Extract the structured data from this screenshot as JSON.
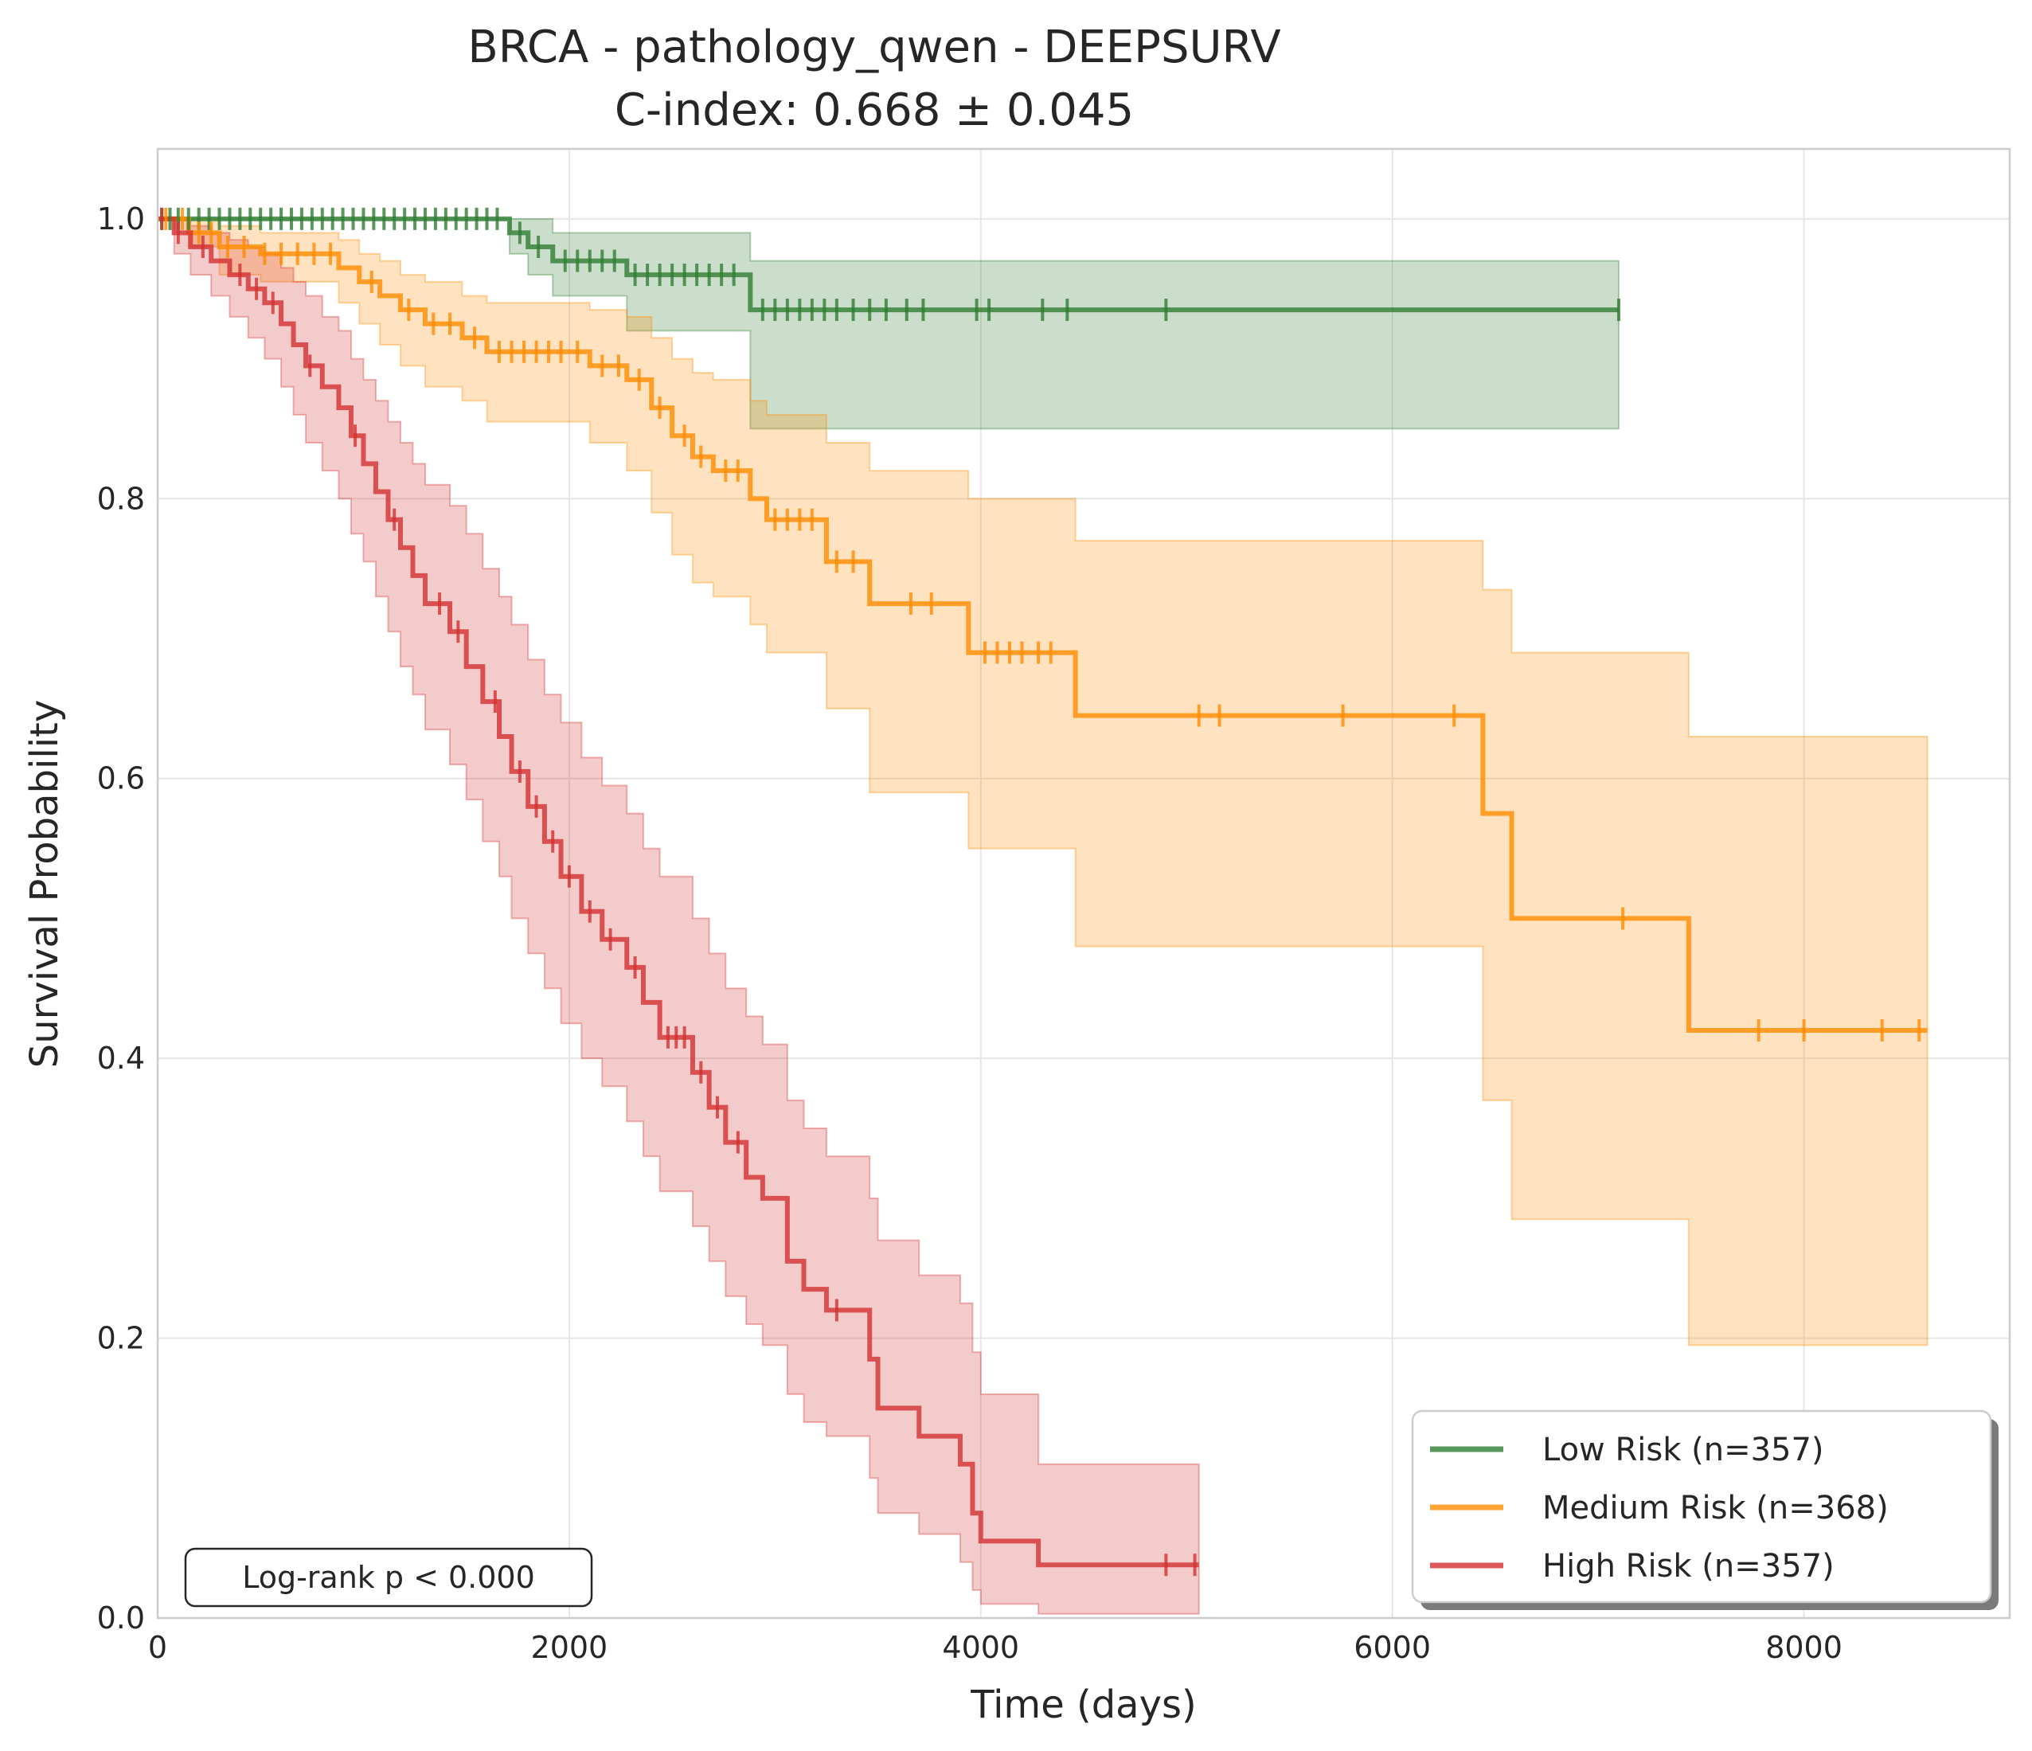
{
  "chart_data": {
    "type": "line",
    "title": "BRCA - pathology_qwen - DEEPSURV",
    "subtitle": "C-index: 0.668 ± 0.045",
    "xlabel": "Time (days)",
    "ylabel": "Survival Probability",
    "xlim": [
      0,
      9000
    ],
    "ylim": [
      0,
      1.05
    ],
    "xticks": [
      0,
      2000,
      4000,
      6000,
      8000
    ],
    "xtick_labels": [
      "0",
      "2000",
      "4000",
      "6000",
      "8000"
    ],
    "yticks": [
      0,
      0.2,
      0.4,
      0.6,
      0.8,
      1.0
    ],
    "ytick_labels": [
      "0.0",
      "0.2",
      "0.4",
      "0.6",
      "0.8",
      "1.0"
    ],
    "grid": true,
    "legend_position": "bottom-right",
    "annotation": "Log-rank p < 0.000",
    "series": [
      {
        "name": "Low Risk (n=357)",
        "color": "#2e7d32",
        "steps": [
          [
            0,
            1.0
          ],
          [
            1710,
            0.99
          ],
          [
            1800,
            0.98
          ],
          [
            1920,
            0.97
          ],
          [
            2280,
            0.96
          ],
          [
            2880,
            0.935
          ],
          [
            7100,
            0.935
          ]
        ],
        "ci": [
          [
            0,
            1.0,
            1.0
          ],
          [
            1710,
            0.975,
            1.0
          ],
          [
            1800,
            0.96,
            1.0
          ],
          [
            1920,
            0.945,
            0.99
          ],
          [
            2280,
            0.92,
            0.99
          ],
          [
            2880,
            0.85,
            0.97
          ],
          [
            7100,
            0.85,
            0.97
          ]
        ],
        "censors": [
          20,
          60,
          100,
          150,
          200,
          250,
          300,
          350,
          400,
          450,
          500,
          550,
          600,
          650,
          700,
          750,
          800,
          850,
          900,
          950,
          1000,
          1050,
          1100,
          1150,
          1200,
          1250,
          1300,
          1350,
          1400,
          1450,
          1500,
          1550,
          1600,
          1650,
          1760,
          1850,
          1980,
          2040,
          2100,
          2160,
          2220,
          2320,
          2380,
          2440,
          2500,
          2560,
          2620,
          2680,
          2740,
          2800,
          2940,
          3000,
          3060,
          3120,
          3180,
          3240,
          3300,
          3380,
          3460,
          3540,
          3640,
          3720,
          3980,
          4040,
          4300,
          4420,
          4900,
          7100
        ]
      },
      {
        "name": "Medium Risk (n=368)",
        "color": "#ff8c00",
        "steps": [
          [
            0,
            1.0
          ],
          [
            150,
            0.99
          ],
          [
            300,
            0.98
          ],
          [
            500,
            0.975
          ],
          [
            880,
            0.965
          ],
          [
            980,
            0.955
          ],
          [
            1080,
            0.945
          ],
          [
            1180,
            0.935
          ],
          [
            1300,
            0.925
          ],
          [
            1480,
            0.915
          ],
          [
            1600,
            0.905
          ],
          [
            2100,
            0.895
          ],
          [
            2280,
            0.885
          ],
          [
            2400,
            0.865
          ],
          [
            2500,
            0.845
          ],
          [
            2600,
            0.83
          ],
          [
            2700,
            0.82
          ],
          [
            2880,
            0.8
          ],
          [
            2960,
            0.785
          ],
          [
            3250,
            0.755
          ],
          [
            3460,
            0.725
          ],
          [
            3940,
            0.69
          ],
          [
            4460,
            0.645
          ],
          [
            6440,
            0.575
          ],
          [
            6580,
            0.5
          ],
          [
            7440,
            0.42
          ],
          [
            8600,
            0.42
          ]
        ],
        "ci": [
          [
            0,
            1.0,
            1.0
          ],
          [
            150,
            0.98,
            1.0
          ],
          [
            300,
            0.96,
            0.995
          ],
          [
            500,
            0.955,
            0.99
          ],
          [
            880,
            0.94,
            0.985
          ],
          [
            980,
            0.925,
            0.975
          ],
          [
            1080,
            0.91,
            0.97
          ],
          [
            1180,
            0.895,
            0.96
          ],
          [
            1300,
            0.88,
            0.955
          ],
          [
            1480,
            0.87,
            0.945
          ],
          [
            1600,
            0.855,
            0.94
          ],
          [
            2100,
            0.84,
            0.935
          ],
          [
            2280,
            0.82,
            0.93
          ],
          [
            2400,
            0.79,
            0.915
          ],
          [
            2500,
            0.76,
            0.9
          ],
          [
            2600,
            0.74,
            0.89
          ],
          [
            2700,
            0.73,
            0.885
          ],
          [
            2880,
            0.71,
            0.87
          ],
          [
            2960,
            0.69,
            0.86
          ],
          [
            3250,
            0.65,
            0.84
          ],
          [
            3460,
            0.59,
            0.82
          ],
          [
            3940,
            0.55,
            0.8
          ],
          [
            4460,
            0.48,
            0.77
          ],
          [
            6440,
            0.37,
            0.735
          ],
          [
            6580,
            0.285,
            0.69
          ],
          [
            7440,
            0.195,
            0.63
          ],
          [
            8600,
            0.195,
            0.63
          ]
        ],
        "censors": [
          40,
          120,
          200,
          260,
          340,
          420,
          520,
          600,
          680,
          760,
          840,
          1040,
          1220,
          1340,
          1420,
          1540,
          1660,
          1720,
          1780,
          1840,
          1900,
          1960,
          2040,
          2160,
          2240,
          2340,
          2440,
          2560,
          2640,
          2760,
          2820,
          3000,
          3060,
          3120,
          3180,
          3300,
          3380,
          3660,
          3760,
          4020,
          4080,
          4140,
          4200,
          4280,
          4340,
          5060,
          5160,
          5760,
          6300,
          7120,
          7780,
          8000,
          8380,
          8560
        ]
      },
      {
        "name": "High Risk (n=357)",
        "color": "#d32f2f",
        "steps": [
          [
            0,
            1.0
          ],
          [
            80,
            0.99
          ],
          [
            160,
            0.98
          ],
          [
            260,
            0.97
          ],
          [
            350,
            0.96
          ],
          [
            440,
            0.95
          ],
          [
            520,
            0.94
          ],
          [
            600,
            0.925
          ],
          [
            660,
            0.91
          ],
          [
            720,
            0.895
          ],
          [
            800,
            0.88
          ],
          [
            880,
            0.865
          ],
          [
            940,
            0.845
          ],
          [
            1000,
            0.825
          ],
          [
            1060,
            0.805
          ],
          [
            1120,
            0.785
          ],
          [
            1180,
            0.765
          ],
          [
            1240,
            0.745
          ],
          [
            1300,
            0.725
          ],
          [
            1420,
            0.705
          ],
          [
            1500,
            0.68
          ],
          [
            1580,
            0.655
          ],
          [
            1660,
            0.63
          ],
          [
            1720,
            0.605
          ],
          [
            1800,
            0.58
          ],
          [
            1880,
            0.555
          ],
          [
            1960,
            0.53
          ],
          [
            2060,
            0.505
          ],
          [
            2160,
            0.485
          ],
          [
            2280,
            0.465
          ],
          [
            2360,
            0.44
          ],
          [
            2440,
            0.415
          ],
          [
            2600,
            0.39
          ],
          [
            2680,
            0.365
          ],
          [
            2760,
            0.34
          ],
          [
            2860,
            0.315
          ],
          [
            2940,
            0.3
          ],
          [
            3060,
            0.255
          ],
          [
            3140,
            0.235
          ],
          [
            3250,
            0.22
          ],
          [
            3460,
            0.185
          ],
          [
            3500,
            0.15
          ],
          [
            3700,
            0.13
          ],
          [
            3900,
            0.11
          ],
          [
            3960,
            0.075
          ],
          [
            4000,
            0.055
          ],
          [
            4280,
            0.038
          ],
          [
            5060,
            0.038
          ]
        ],
        "ci": [
          [
            0,
            1.0,
            1.0
          ],
          [
            80,
            0.975,
            1.0
          ],
          [
            160,
            0.96,
            0.995
          ],
          [
            260,
            0.945,
            0.99
          ],
          [
            350,
            0.93,
            0.985
          ],
          [
            440,
            0.915,
            0.98
          ],
          [
            520,
            0.9,
            0.975
          ],
          [
            600,
            0.88,
            0.965
          ],
          [
            660,
            0.86,
            0.955
          ],
          [
            720,
            0.84,
            0.945
          ],
          [
            800,
            0.82,
            0.93
          ],
          [
            880,
            0.8,
            0.92
          ],
          [
            940,
            0.775,
            0.9
          ],
          [
            1000,
            0.755,
            0.885
          ],
          [
            1060,
            0.73,
            0.87
          ],
          [
            1120,
            0.705,
            0.855
          ],
          [
            1180,
            0.68,
            0.84
          ],
          [
            1240,
            0.66,
            0.825
          ],
          [
            1300,
            0.635,
            0.81
          ],
          [
            1420,
            0.61,
            0.795
          ],
          [
            1500,
            0.585,
            0.775
          ],
          [
            1580,
            0.555,
            0.75
          ],
          [
            1660,
            0.53,
            0.73
          ],
          [
            1720,
            0.5,
            0.71
          ],
          [
            1800,
            0.475,
            0.685
          ],
          [
            1880,
            0.45,
            0.66
          ],
          [
            1960,
            0.425,
            0.64
          ],
          [
            2060,
            0.4,
            0.615
          ],
          [
            2160,
            0.38,
            0.595
          ],
          [
            2280,
            0.355,
            0.575
          ],
          [
            2360,
            0.33,
            0.55
          ],
          [
            2440,
            0.305,
            0.53
          ],
          [
            2600,
            0.28,
            0.5
          ],
          [
            2680,
            0.255,
            0.475
          ],
          [
            2760,
            0.23,
            0.45
          ],
          [
            2860,
            0.21,
            0.43
          ],
          [
            2940,
            0.195,
            0.41
          ],
          [
            3060,
            0.16,
            0.37
          ],
          [
            3140,
            0.14,
            0.35
          ],
          [
            3250,
            0.13,
            0.33
          ],
          [
            3460,
            0.1,
            0.3
          ],
          [
            3500,
            0.075,
            0.27
          ],
          [
            3700,
            0.06,
            0.245
          ],
          [
            3900,
            0.04,
            0.225
          ],
          [
            3960,
            0.02,
            0.19
          ],
          [
            4000,
            0.01,
            0.16
          ],
          [
            4280,
            0.003,
            0.11
          ],
          [
            5060,
            0.003,
            0.11
          ]
        ],
        "censors": [
          20,
          100,
          220,
          400,
          480,
          560,
          740,
          960,
          1150,
          1370,
          1460,
          1640,
          1760,
          1840,
          1920,
          2000,
          2100,
          2200,
          2320,
          2480,
          2520,
          2560,
          2640,
          2720,
          2820,
          3300,
          4900,
          5040
        ]
      }
    ]
  }
}
